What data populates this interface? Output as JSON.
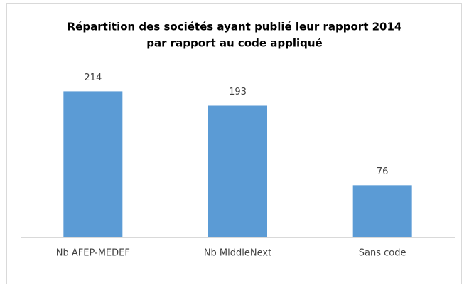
{
  "chart_data": {
    "type": "bar",
    "title": [
      "Répartition des sociétés ayant publié leur rapport  2014",
      "par rapport au code appliqué"
    ],
    "categories": [
      "Nb AFEP-MEDEF",
      "Nb MiddleNext",
      "Sans code"
    ],
    "values": [
      214,
      193,
      76
    ],
    "color": "#5b9bd5",
    "ylim": [
      0,
      250
    ]
  }
}
